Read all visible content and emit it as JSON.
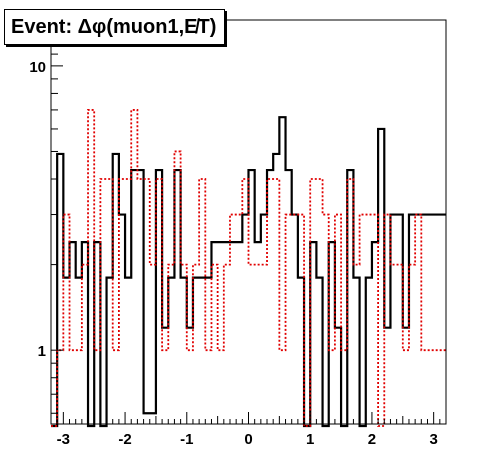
{
  "title": "Event: Δφ(muon1,E̸T)",
  "chart_data": {
    "type": "line",
    "title": "Event: Δφ(muon1,E̸T)",
    "xlabel": "",
    "ylabel": "",
    "xlim": [
      -3.2,
      3.2
    ],
    "ylim": [
      0.55,
      14.5
    ],
    "y_scale": "log",
    "x_ticks": [
      "-3",
      "-2",
      "-1",
      "0",
      "1",
      "2",
      "3"
    ],
    "y_ticks": [
      "1",
      "10"
    ],
    "grid": false,
    "legend": "none",
    "bin_edges": [
      -3.2,
      -3.1,
      -3.0,
      -2.9,
      -2.8,
      -2.7,
      -2.6,
      -2.5,
      -2.4,
      -2.3,
      -2.2,
      -2.1,
      -2.0,
      -1.9,
      -1.8,
      -1.7,
      -1.6,
      -1.5,
      -1.4,
      -1.3,
      -1.2,
      -1.1,
      -1.0,
      -0.9,
      -0.8,
      -0.7,
      -0.6,
      -0.5,
      -0.4,
      -0.3,
      -0.2,
      -0.1,
      0.0,
      0.1,
      0.2,
      0.3,
      0.4,
      0.5,
      0.6,
      0.7,
      0.8,
      0.9,
      1.0,
      1.1,
      1.2,
      1.3,
      1.4,
      1.5,
      1.6,
      1.7,
      1.8,
      1.9,
      2.0,
      2.1,
      2.2,
      2.3,
      2.4,
      2.5,
      2.6,
      2.7,
      2.8,
      2.9,
      3.0,
      3.1,
      3.2
    ],
    "series": [
      {
        "color": "#000000",
        "style": "solid",
        "values": [
          0.5,
          4.9,
          1.8,
          2.4,
          1.8,
          2.4,
          0.5,
          2.4,
          0.5,
          1.8,
          4.9,
          3.0,
          1.8,
          4.3,
          4.3,
          0.6,
          0.6,
          4.3,
          1.2,
          1.8,
          4.3,
          1.8,
          1.2,
          1.8,
          1.8,
          1.8,
          2.4,
          2.4,
          2.4,
          2.4,
          2.4,
          3.0,
          4.3,
          2.4,
          3.0,
          4.3,
          4.9,
          6.6,
          4.3,
          3.0,
          1.8,
          0.5,
          2.4,
          1.8,
          0.5,
          2.4,
          1.2,
          0.5,
          4.3,
          1.8,
          0.5,
          1.8,
          2.4,
          6.0,
          1.2,
          3.0,
          3.0,
          1.2,
          3.0,
          3.0,
          3.0,
          3.0,
          3.0,
          3.0
        ]
      },
      {
        "color": "#e00000",
        "style": "dotted",
        "values": [
          0.5,
          1.0,
          3.0,
          1.0,
          1.0,
          2.0,
          7.0,
          1.0,
          4.0,
          4.0,
          1.0,
          4.0,
          4.0,
          7.0,
          4.0,
          4.0,
          2.0,
          4.0,
          1.0,
          2.0,
          5.0,
          2.0,
          1.0,
          2.0,
          4.0,
          1.0,
          2.0,
          1.0,
          2.0,
          3.0,
          3.0,
          4.0,
          2.0,
          2.0,
          2.0,
          4.0,
          4.0,
          1.0,
          3.0,
          3.0,
          3.0,
          0.5,
          4.0,
          4.0,
          3.0,
          1.0,
          3.0,
          1.0,
          4.0,
          2.0,
          3.0,
          3.0,
          3.0,
          0.5,
          3.0,
          2.0,
          2.0,
          1.0,
          2.0,
          3.0,
          1.0,
          1.0,
          1.0,
          1.0
        ]
      }
    ]
  }
}
